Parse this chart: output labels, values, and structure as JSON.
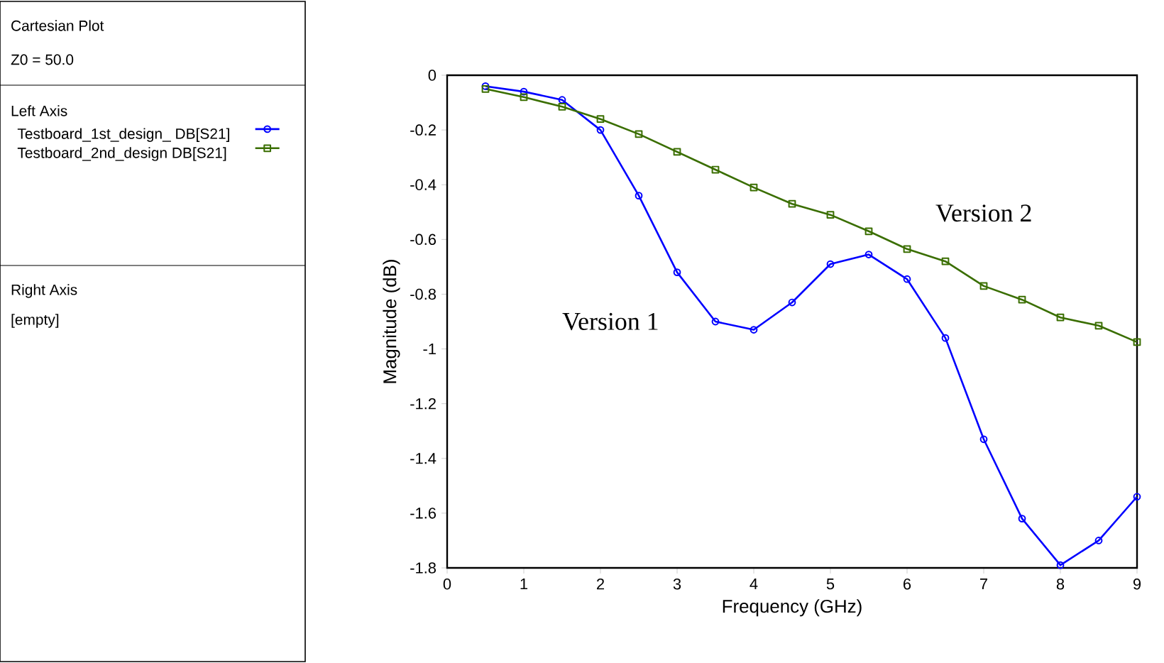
{
  "chart_data": {
    "type": "line",
    "title": "Cartesian Plot",
    "subtitle": "Z0 = 50.0",
    "legend_title": "Left Axis",
    "xlabel": "Frequency (GHz)",
    "ylabel": "Magnitude (dB)",
    "xlim": [
      0,
      9
    ],
    "xticks": [
      0,
      1,
      2,
      3,
      4,
      5,
      6,
      7,
      8,
      9
    ],
    "ylim": [
      -1.8,
      0
    ],
    "yticks": [
      -1.8,
      -1.6,
      -1.4,
      -1.2,
      -1,
      -0.8,
      -0.6,
      -0.4,
      -0.2,
      0
    ],
    "grid": false,
    "legend": "left",
    "x": [
      0.5,
      1,
      1.5,
      2,
      2.5,
      3,
      3.5,
      4,
      4.5,
      5,
      5.5,
      6,
      6.5,
      7,
      7.5,
      8,
      8.5,
      9
    ],
    "series": [
      {
        "name": "Testboard_1st_design_ DB[S21]",
        "color": "#0000ff",
        "marker": "circle",
        "values": [
          -0.04,
          -0.06,
          -0.09,
          -0.2,
          -0.44,
          -0.72,
          -0.9,
          -0.93,
          -0.83,
          -0.69,
          -0.655,
          -0.745,
          -0.96,
          -1.33,
          -1.62,
          -1.79,
          -1.7,
          -1.54
        ]
      },
      {
        "name": "Testboard_2nd_design DB[S21]",
        "color": "#3a6e00",
        "marker": "square",
        "values": [
          -0.05,
          -0.08,
          -0.115,
          -0.16,
          -0.215,
          -0.28,
          -0.345,
          -0.41,
          -0.47,
          -0.51,
          -0.57,
          -0.635,
          -0.68,
          -0.77,
          -0.82,
          -0.885,
          -0.915,
          -0.975
        ]
      }
    ],
    "annotations": [
      "Version 1",
      "Version 2",
      "Right Axis",
      "[empty]"
    ]
  }
}
